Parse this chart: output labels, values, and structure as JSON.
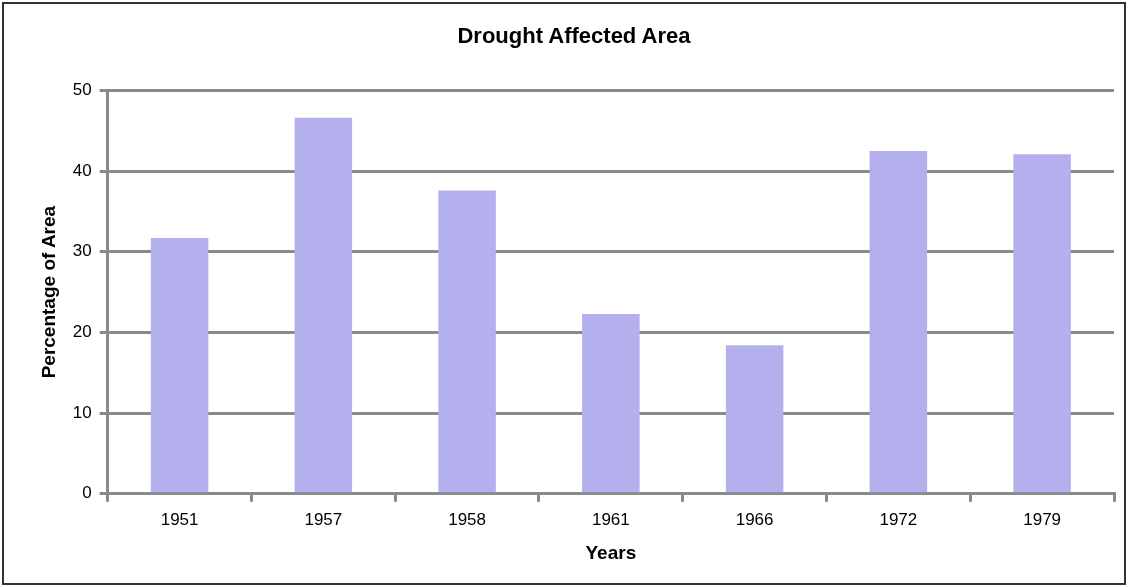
{
  "chart_data": {
    "type": "bar",
    "title": "Drought Affected Area",
    "xlabel": "Years",
    "ylabel": "Percentage of Area",
    "categories": [
      "1951",
      "1957",
      "1958",
      "1961",
      "1966",
      "1972",
      "1979"
    ],
    "values": [
      31.7,
      46.6,
      37.6,
      22.3,
      18.4,
      42.5,
      42.1
    ],
    "color": "#b4b0ee",
    "ylim": [
      0,
      50
    ],
    "yticks": [
      0,
      10,
      20,
      30,
      40,
      50
    ],
    "grid": "y",
    "legend": false
  }
}
